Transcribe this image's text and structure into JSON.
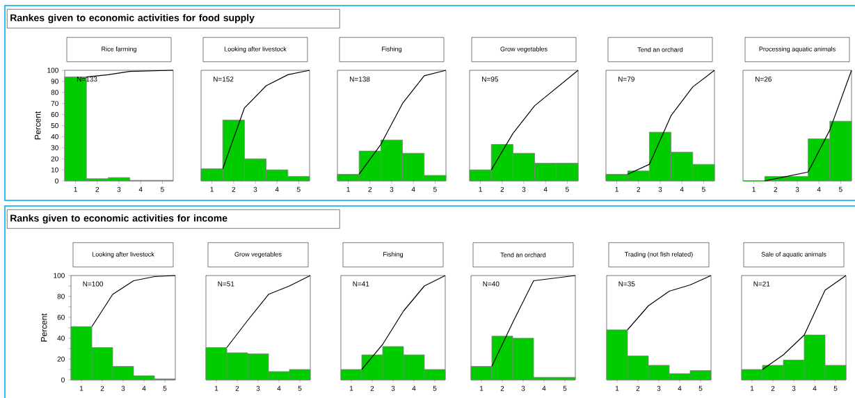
{
  "chart_data": [
    {
      "type": "bar",
      "title": "Rice farming",
      "ylabel": "Percent",
      "annotations": [
        "Rankes given to economic activities for food supply",
        "N=133"
      ],
      "x": [
        1,
        2,
        3,
        4,
        5
      ],
      "xlim": [
        0.5,
        5.5
      ],
      "ylim": [
        0,
        100
      ],
      "xticks": [
        1,
        2,
        3,
        4,
        5
      ],
      "yticks": [
        0,
        10,
        20,
        30,
        40,
        50,
        60,
        70,
        80,
        90,
        100
      ],
      "series": [
        {
          "color": "#00cc00",
          "values": [
            94,
            2,
            3,
            0.5,
            0.5
          ]
        },
        {
          "type": "line",
          "color": "#000000",
          "x": [
            1.5,
            2.5,
            3.5,
            4.5,
            5.5
          ],
          "values": [
            94,
            96,
            99,
            99.5,
            100
          ]
        }
      ]
    },
    {
      "type": "bar",
      "title": "Looking after livestock",
      "annotations": [
        "N=152"
      ],
      "x": [
        1,
        2,
        3,
        4,
        5
      ],
      "xlim": [
        0.5,
        5.5
      ],
      "ylim": [
        0,
        100
      ],
      "xticks": [
        1,
        2,
        3,
        4,
        5
      ],
      "tick_labels": "x",
      "series": [
        {
          "color": "#00cc00",
          "values": [
            11,
            55,
            20,
            10,
            4
          ]
        },
        {
          "type": "line",
          "color": "#000000",
          "x": [
            1.5,
            2.5,
            3.5,
            4.5,
            5.5
          ],
          "values": [
            11,
            66,
            86,
            96,
            100
          ]
        }
      ]
    },
    {
      "type": "bar",
      "title": "Fishing",
      "annotations": [
        "N=138"
      ],
      "x": [
        1,
        2,
        3,
        4,
        5
      ],
      "xlim": [
        0.5,
        5.5
      ],
      "ylim": [
        0,
        100
      ],
      "xticks": [
        1,
        2,
        3,
        4,
        5
      ],
      "tick_labels": "x",
      "series": [
        {
          "color": "#00cc00",
          "values": [
            6,
            27,
            37,
            25,
            5
          ]
        },
        {
          "type": "line",
          "color": "#000000",
          "x": [
            1.5,
            2.5,
            3.5,
            4.5,
            5.5
          ],
          "values": [
            6,
            33,
            70,
            95,
            100
          ]
        }
      ]
    },
    {
      "type": "bar",
      "title": "Grow vegetables",
      "annotations": [
        "N=95"
      ],
      "x": [
        1,
        2,
        3,
        4,
        5
      ],
      "xlim": [
        0.5,
        5.5
      ],
      "ylim": [
        0,
        100
      ],
      "xticks": [
        1,
        2,
        3,
        4,
        5
      ],
      "tick_labels": "x",
      "series": [
        {
          "color": "#00cc00",
          "values": [
            10,
            33,
            25,
            16,
            16
          ]
        },
        {
          "type": "line",
          "color": "#000000",
          "x": [
            1.5,
            2.5,
            3.5,
            4.5,
            5.5
          ],
          "values": [
            10,
            43,
            68,
            84,
            100
          ]
        }
      ]
    },
    {
      "type": "bar",
      "title": "Tend an orchard",
      "annotations": [
        "N=79"
      ],
      "x": [
        1,
        2,
        3,
        4,
        5
      ],
      "xlim": [
        0.5,
        5.5
      ],
      "ylim": [
        0,
        100
      ],
      "xticks": [
        1,
        2,
        3,
        4,
        5
      ],
      "tick_labels": "x",
      "series": [
        {
          "color": "#00cc00",
          "values": [
            6,
            9,
            44,
            26,
            15
          ]
        },
        {
          "type": "line",
          "color": "#000000",
          "x": [
            1.5,
            2.5,
            3.5,
            4.5,
            5.5
          ],
          "values": [
            6,
            15,
            59,
            85,
            100
          ]
        }
      ]
    },
    {
      "type": "bar",
      "title": "Processing aquatic animals",
      "annotations": [
        "N=26"
      ],
      "x": [
        1,
        2,
        3,
        4,
        5
      ],
      "xlim": [
        0.5,
        5.5
      ],
      "ylim": [
        0,
        100
      ],
      "xticks": [
        1,
        2,
        3,
        4,
        5
      ],
      "tick_labels": "x",
      "series": [
        {
          "color": "#00cc00",
          "values": [
            0,
            4,
            4,
            38,
            54
          ]
        },
        {
          "type": "line",
          "color": "#000000",
          "x": [
            1.5,
            2.5,
            3.5,
            4.5,
            5.5
          ],
          "values": [
            0,
            4,
            8,
            46,
            100
          ]
        }
      ]
    },
    {
      "type": "bar",
      "title": "Looking after livestock",
      "ylabel": "Percent",
      "annotations": [
        "Ranks given to economic activities for income",
        "N=100"
      ],
      "x": [
        1,
        2,
        3,
        4,
        5
      ],
      "xlim": [
        0.5,
        5.5
      ],
      "ylim": [
        0,
        100
      ],
      "xticks": [
        1,
        2,
        3,
        4,
        5
      ],
      "yticks": [
        0,
        {
          "value": 10,
          "label": null
        },
        20,
        {
          "value": 30,
          "label": null
        },
        40,
        {
          "value": 50,
          "label": null
        },
        60,
        {
          "value": 70,
          "label": null
        },
        80,
        {
          "value": 90,
          "label": null
        },
        100
      ],
      "series": [
        {
          "color": "#00cc00",
          "values": [
            51,
            31,
            13,
            4,
            1
          ]
        },
        {
          "type": "line",
          "color": "#000000",
          "x": [
            1.5,
            2.5,
            3.5,
            4.5,
            5.5
          ],
          "values": [
            51,
            82,
            95,
            99,
            100
          ]
        }
      ]
    },
    {
      "type": "bar",
      "title": "Grow vegetables",
      "annotations": [
        "N=51"
      ],
      "x": [
        1,
        2,
        3,
        4,
        5
      ],
      "xlim": [
        0.5,
        5.5
      ],
      "ylim": [
        0,
        100
      ],
      "xticks": [
        1,
        2,
        3,
        4,
        5
      ],
      "tick_labels": "x",
      "series": [
        {
          "color": "#00cc00",
          "values": [
            31,
            26,
            25,
            8,
            10
          ]
        },
        {
          "type": "line",
          "color": "#000000",
          "x": [
            1.5,
            2.5,
            3.5,
            4.5,
            5.5
          ],
          "values": [
            31,
            57,
            82,
            90,
            100
          ]
        }
      ]
    },
    {
      "type": "bar",
      "title": "Fishing",
      "annotations": [
        "N=41"
      ],
      "x": [
        1,
        2,
        3,
        4,
        5
      ],
      "xlim": [
        0.5,
        5.5
      ],
      "ylim": [
        0,
        100
      ],
      "xticks": [
        1,
        2,
        3,
        4,
        5
      ],
      "tick_labels": "x",
      "series": [
        {
          "color": "#00cc00",
          "values": [
            10,
            24,
            32,
            24,
            10
          ]
        },
        {
          "type": "line",
          "color": "#000000",
          "x": [
            1.5,
            2.5,
            3.5,
            4.5,
            5.5
          ],
          "values": [
            10,
            34,
            66,
            90,
            100
          ]
        }
      ]
    },
    {
      "type": "bar",
      "title": "Tend an orchard",
      "annotations": [
        "N=40"
      ],
      "x": [
        1,
        2,
        3,
        4,
        5
      ],
      "xlim": [
        0.5,
        5.5
      ],
      "ylim": [
        0,
        100
      ],
      "xticks": [
        1,
        2,
        3,
        4,
        5
      ],
      "tick_labels": "x",
      "series": [
        {
          "color": "#00cc00",
          "values": [
            13,
            42,
            40,
            2.5,
            2.5
          ]
        },
        {
          "type": "line",
          "color": "#000000",
          "x": [
            1.5,
            2.5,
            3.5,
            4.5,
            5.5
          ],
          "values": [
            13,
            55,
            95,
            97.5,
            100
          ]
        }
      ]
    },
    {
      "type": "bar",
      "title": "Trading (not fish related)",
      "annotations": [
        "N=35"
      ],
      "x": [
        1,
        2,
        3,
        4,
        5
      ],
      "xlim": [
        0.5,
        5.5
      ],
      "ylim": [
        0,
        100
      ],
      "xticks": [
        1,
        2,
        3,
        4,
        5
      ],
      "tick_labels": "x",
      "series": [
        {
          "color": "#00cc00",
          "values": [
            48,
            23,
            14,
            6,
            9
          ]
        },
        {
          "type": "line",
          "color": "#000000",
          "x": [
            1.5,
            2.5,
            3.5,
            4.5,
            5.5
          ],
          "values": [
            48,
            71,
            85,
            91,
            100
          ]
        }
      ]
    },
    {
      "type": "bar",
      "title": "Sale of aquatic animals",
      "annotations": [
        "N=21"
      ],
      "x": [
        1,
        2,
        3,
        4,
        5
      ],
      "xlim": [
        0.5,
        5.5
      ],
      "ylim": [
        0,
        100
      ],
      "xticks": [
        1,
        2,
        3,
        4,
        5
      ],
      "tick_labels": "x",
      "series": [
        {
          "color": "#00cc00",
          "values": [
            10,
            14,
            19,
            43,
            14
          ]
        },
        {
          "type": "line",
          "color": "#000000",
          "x": [
            1.5,
            2.5,
            3.5,
            4.5,
            5.5
          ],
          "values": [
            10,
            24,
            43,
            86,
            100
          ]
        }
      ]
    }
  ]
}
